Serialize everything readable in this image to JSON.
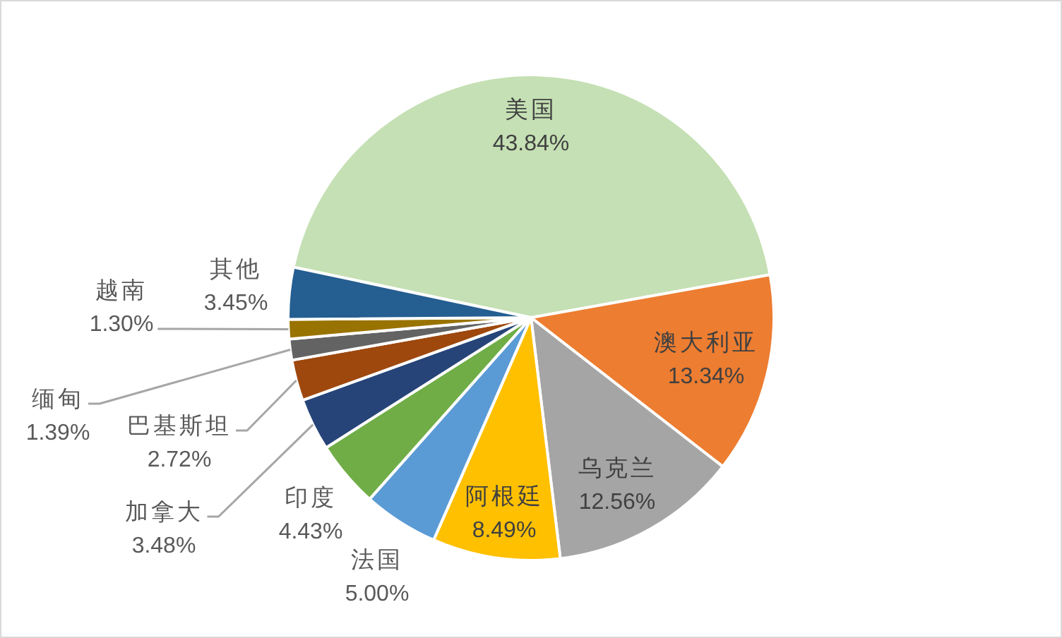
{
  "chart_data": {
    "type": "pie",
    "categories": [
      "美国",
      "澳大利亚",
      "乌克兰",
      "阿根廷",
      "法国",
      "印度",
      "加拿大",
      "巴基斯坦",
      "缅甸",
      "越南",
      "其他"
    ],
    "values": [
      43.84,
      13.34,
      12.56,
      8.49,
      5.0,
      4.43,
      3.48,
      2.72,
      1.39,
      1.3,
      3.45
    ],
    "colors": [
      "#c5e0b4",
      "#ed7d31",
      "#a5a5a5",
      "#ffc000",
      "#5b9bd5",
      "#70ad47",
      "#264478",
      "#9e480e",
      "#636363",
      "#997300",
      "#255e91"
    ],
    "value_labels": [
      "43.84%",
      "13.34%",
      "12.56%",
      "8.49%",
      "5.00%",
      "4.43%",
      "3.48%",
      "2.72%",
      "1.39%",
      "1.30%",
      "3.45%"
    ]
  }
}
